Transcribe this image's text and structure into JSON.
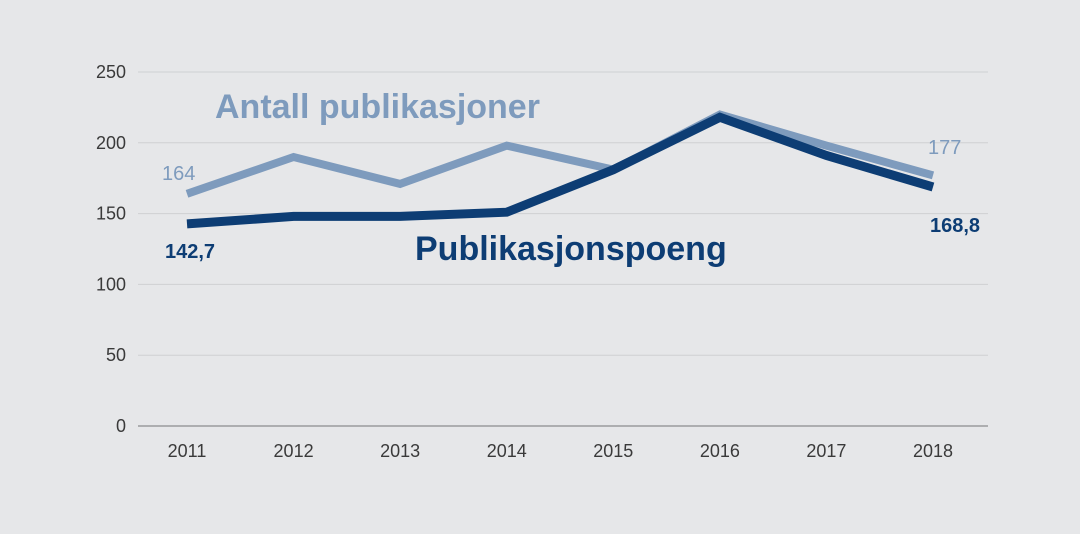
{
  "chart_data": {
    "type": "line",
    "title": "",
    "xlabel": "",
    "ylabel": "",
    "categories": [
      "2011",
      "2012",
      "2013",
      "2014",
      "2015",
      "2016",
      "2017",
      "2018"
    ],
    "ylim": [
      0,
      250
    ],
    "yticks": [
      0,
      50,
      100,
      150,
      200,
      250
    ],
    "grid": true,
    "series": [
      {
        "name": "Antall publikasjoner",
        "color": "#7e9bbd",
        "values": [
          164,
          190,
          171,
          198,
          181,
          220,
          198,
          177
        ],
        "start_label": "164",
        "end_label": "177"
      },
      {
        "name": "Publikasjonspoeng",
        "color": "#0d3d74",
        "values": [
          142.7,
          148,
          148,
          151,
          181,
          218,
          191,
          168.8
        ],
        "start_label": "142,7",
        "end_label": "168,8"
      }
    ]
  }
}
